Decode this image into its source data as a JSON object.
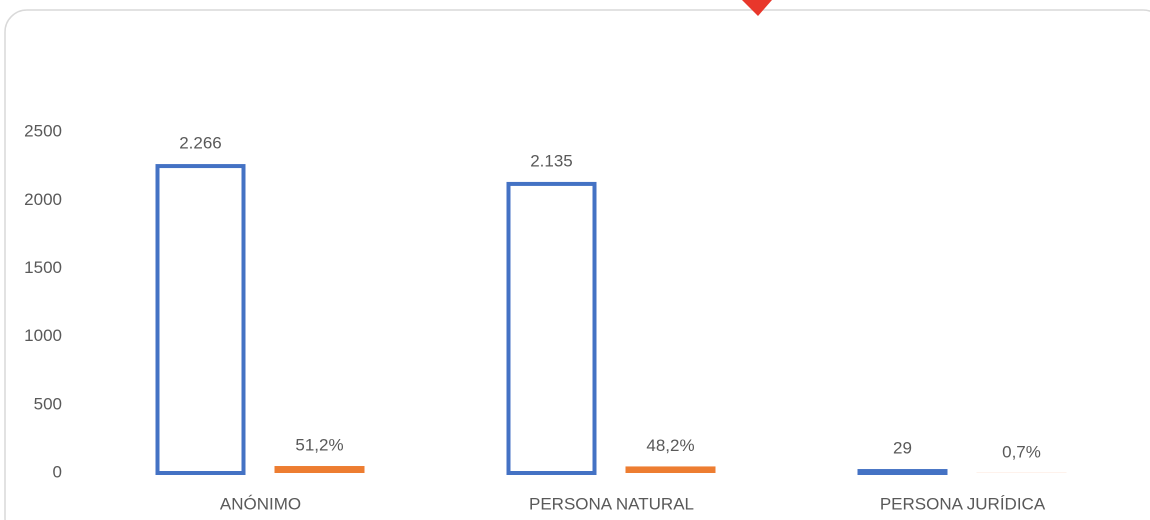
{
  "chart_data": {
    "type": "bar",
    "categories": [
      "ANÓNIMO",
      "PERSONA NATURAL",
      "PERSONA JURÍDICA"
    ],
    "series": [
      {
        "color": "#4472c4",
        "values": [
          2266,
          2135,
          29
        ],
        "value_labels": [
          "2.266",
          "2.135",
          "29"
        ]
      },
      {
        "color": "#ed7d31",
        "values": [
          51.2,
          48.2,
          0.7
        ],
        "value_labels": [
          "51,2%",
          "48,2%",
          "0,7%"
        ]
      }
    ],
    "ylim": [
      0,
      3000
    ],
    "yticks": [
      0,
      500,
      1000,
      1500,
      2000,
      2500
    ],
    "grid": false
  }
}
